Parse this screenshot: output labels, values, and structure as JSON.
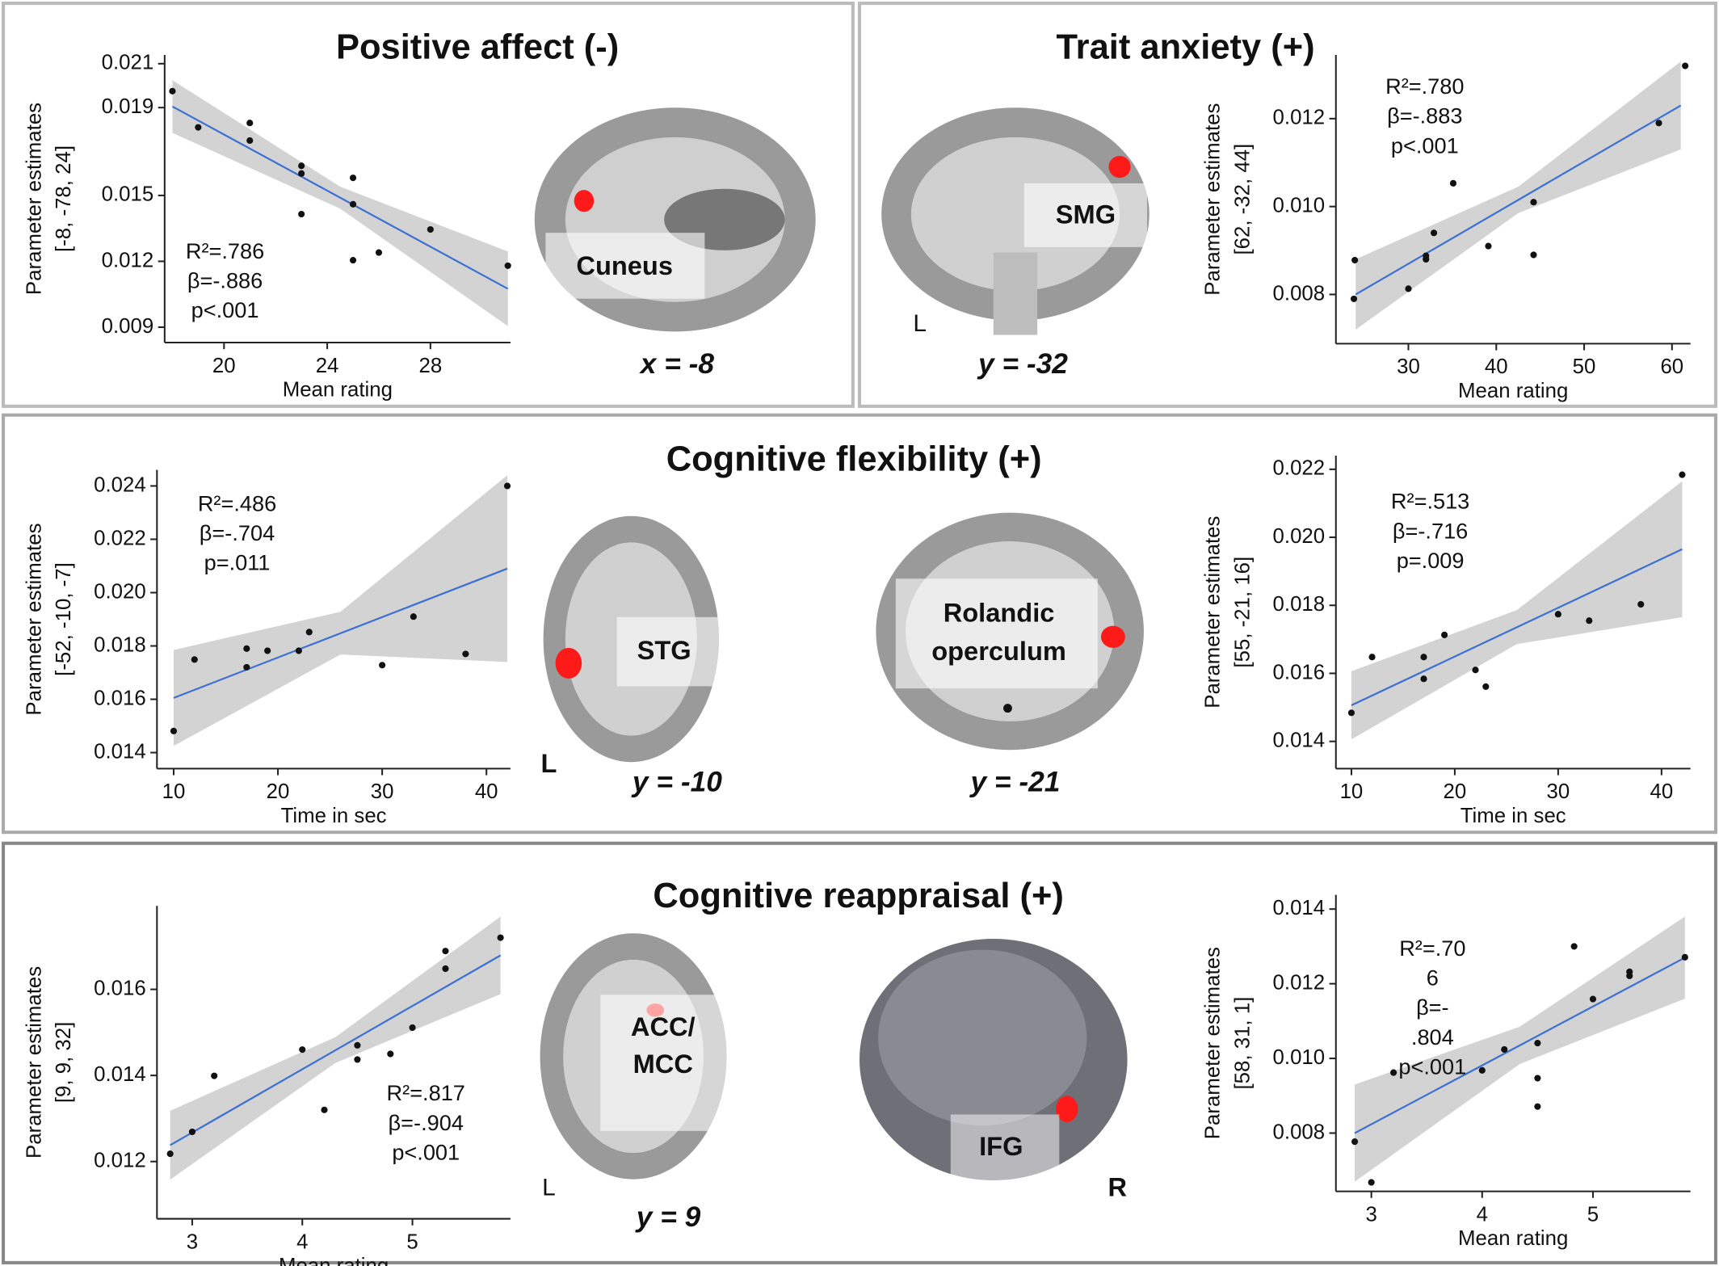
{
  "panels": [
    {
      "title": "Positive affect (-)",
      "brain_labels": [
        "Cuneus",
        "x = -8"
      ]
    },
    {
      "title": "Trait anxiety (+)",
      "brain_labels": [
        "SMG",
        "L",
        "y = -32"
      ]
    },
    {
      "title": "Cognitive  flexibility (+)",
      "brain_labels": [
        "STG",
        "L",
        "y = -10",
        "Rolandic",
        "operculum",
        "y = -21"
      ]
    },
    {
      "title": "Cognitive reappraisal (+)",
      "brain_labels": [
        "ACC/",
        "MCC",
        "L",
        "y = 9",
        "IFG",
        "R"
      ]
    }
  ],
  "chart_data": [
    {
      "type": "scatter",
      "xlabel": "Mean rating",
      "ylabel": [
        "Parameter estimates",
        "[-8, -78, 24]"
      ],
      "annotation": [
        "R²=.786",
        "β=-.886",
        "p<.001"
      ],
      "color": "#111111",
      "x": [
        18,
        19,
        21,
        21,
        23,
        23,
        23,
        25,
        25,
        25,
        26,
        28,
        31
      ],
      "values": [
        0.01975,
        0.0181,
        0.0183,
        0.0175,
        0.01635,
        0.016,
        0.01415,
        0.0158,
        0.0146,
        0.01205,
        0.0124,
        0.01345,
        0.0118
      ],
      "xlim": [
        17.7,
        31.1
      ],
      "ylim": [
        0.0083,
        0.0214
      ],
      "xticks": [
        20,
        24,
        28
      ],
      "yticks": [
        0.009,
        0.012,
        0.015,
        0.019,
        0.021
      ],
      "fit": {
        "x": [
          18,
          31
        ],
        "y": [
          0.01905,
          0.01075
        ],
        "color": "#3b6fd4"
      },
      "band": {
        "x": [
          18,
          24.5,
          31
        ],
        "lower": [
          0.01785,
          0.0144,
          0.00905
        ],
        "upper": [
          0.02025,
          0.0154,
          0.01245
        ],
        "color": "#d3d3d3"
      }
    },
    {
      "type": "scatter",
      "xlabel": "Mean rating",
      "ylabel": [
        "Parameter estimates",
        "[62, -32, 44]"
      ],
      "annotation": [
        "R²=.780",
        "β=-.883",
        "p<.001"
      ],
      "color": "#111111",
      "x": [
        23.9,
        23.8,
        30,
        32,
        32,
        32.9,
        35.1,
        39.1,
        44.25,
        44.25,
        58.5,
        61.5
      ],
      "values": [
        0.00878,
        0.0079,
        0.00813,
        0.0088,
        0.00888,
        0.0094,
        0.01053,
        0.0091,
        0.0101,
        0.0089,
        0.0119,
        0.0132
      ],
      "xlim": [
        21.75,
        62.1
      ],
      "ylim": [
        0.00688,
        0.01345
      ],
      "xticks": [
        30,
        40,
        50,
        60
      ],
      "yticks": [
        0.008,
        {
          "value": 0.01,
          "label": "0.010"
        },
        0.012
      ],
      "fit": {
        "x": [
          24,
          61
        ],
        "y": [
          0.008,
          0.0123
        ],
        "color": "#3b6fd4"
      },
      "band": {
        "x": [
          24,
          42.5,
          61
        ],
        "lower": [
          0.0072,
          0.00985,
          0.0113
        ],
        "upper": [
          0.0088,
          0.01045,
          0.0133
        ],
        "color": "#d3d3d3"
      }
    },
    {
      "type": "scatter",
      "xlabel": "Time in sec",
      "ylabel": [
        "Parameter estimates",
        "[-52, -10, -7]"
      ],
      "annotation": [
        "R²=.486",
        "β=-.704",
        "p=.011"
      ],
      "color": "#111111",
      "x": [
        10,
        12,
        17,
        17,
        19,
        22,
        23,
        30,
        33,
        38,
        42
      ],
      "values": [
        0.01481,
        0.01749,
        0.0179,
        0.0172,
        0.01782,
        0.01782,
        0.01852,
        0.01728,
        0.0191,
        0.0177,
        0.024
      ],
      "xlim": [
        8.4,
        42.3
      ],
      "ylim": [
        0.0134,
        0.0246
      ],
      "xticks": [
        10,
        20,
        30,
        40
      ],
      "yticks": [
        0.014,
        0.016,
        0.018,
        {
          "value": 0.02,
          "label": "0.020"
        },
        0.022,
        0.024
      ],
      "fit": {
        "x": [
          10,
          42
        ],
        "y": [
          0.01605,
          0.0209
        ],
        "color": "#3b6fd4"
      },
      "band": {
        "x": [
          10,
          26,
          42
        ],
        "lower": [
          0.01425,
          0.01768,
          0.0174
        ],
        "upper": [
          0.01785,
          0.01928,
          0.0244
        ],
        "color": "#d3d3d3"
      }
    },
    {
      "type": "scatter",
      "xlabel": "Time in sec",
      "ylabel": [
        "Parameter estimates",
        "[55, -21, 16]"
      ],
      "annotation": [
        "R²=.513",
        "β=-.716",
        "p=.009"
      ],
      "color": "#111111",
      "x": [
        10,
        12,
        17,
        17,
        19,
        22,
        23,
        30,
        33,
        38,
        42
      ],
      "values": [
        0.01484,
        0.01648,
        0.01648,
        0.01584,
        0.01713,
        0.0161,
        0.01561,
        0.01774,
        0.01755,
        0.01803,
        0.02184
      ],
      "xlim": [
        8.5,
        42.8
      ],
      "ylim": [
        0.0132,
        0.0224
      ],
      "xticks": [
        10,
        20,
        30,
        40
      ],
      "yticks": [
        0.014,
        0.016,
        0.018,
        {
          "value": 0.02,
          "label": "0.020"
        },
        0.022
      ],
      "fit": {
        "x": [
          10,
          42
        ],
        "y": [
          0.01506,
          0.01965
        ],
        "color": "#3b6fd4"
      },
      "band": {
        "x": [
          10,
          26,
          42
        ],
        "lower": [
          0.01406,
          0.01686,
          0.01765
        ],
        "upper": [
          0.01606,
          0.01786,
          0.02165
        ],
        "color": "#d3d3d3"
      }
    },
    {
      "type": "scatter",
      "xlabel": "Mean rating",
      "ylabel": [
        "Parameter estimates",
        "[9, 9, 32]"
      ],
      "annotation": [
        "R²=.817",
        "β=-.904",
        "p<.001"
      ],
      "color": "#111111",
      "x": [
        2.8,
        3,
        3.2,
        4,
        4.2,
        4.5,
        4.5,
        4.8,
        5,
        5.3,
        5.3,
        5.8
      ],
      "values": [
        0.01218,
        0.01269,
        0.01399,
        0.0146,
        0.0132,
        0.0147,
        0.01437,
        0.0145,
        0.01511,
        0.01689,
        0.01648,
        0.0172
      ],
      "xlim": [
        2.68,
        5.89
      ],
      "ylim": [
        0.01067,
        0.01794
      ],
      "xticks": [
        3,
        4,
        5
      ],
      "yticks": [
        0.012,
        0.014,
        0.016
      ],
      "fit": {
        "x": [
          2.8,
          5.8
        ],
        "y": [
          0.01238,
          0.01679
        ],
        "color": "#3b6fd4"
      },
      "band": {
        "x": [
          2.8,
          4.3,
          5.8
        ],
        "lower": [
          0.01158,
          0.01429,
          0.01589
        ],
        "upper": [
          0.01318,
          0.01489,
          0.01769
        ],
        "color": "#d3d3d3"
      }
    },
    {
      "type": "scatter",
      "xlabel": "Mean rating",
      "ylabel": [
        "Parameter estimates",
        "[58, 31, 1]"
      ],
      "annotation": [
        "R²=.70",
        "6",
        "β=-",
        ".804",
        "p<.001"
      ],
      "color": "#111111",
      "x": [
        2.85,
        3,
        3.2,
        4,
        4.2,
        4.5,
        4.5,
        4.5,
        4.83,
        5,
        5.33,
        5.33,
        5.83
      ],
      "values": [
        0.00777,
        0.00668,
        0.00962,
        0.00968,
        0.01024,
        0.01041,
        0.00947,
        0.00871,
        0.013,
        0.01159,
        0.01232,
        0.01221,
        0.01271
      ],
      "xlim": [
        2.68,
        5.88
      ],
      "ylim": [
        0.00644,
        0.01438
      ],
      "xticks": [
        3,
        4,
        5
      ],
      "yticks": [
        0.008,
        {
          "value": 0.01,
          "label": "0.010"
        },
        0.012,
        0.014
      ],
      "fit": {
        "x": [
          2.85,
          5.83
        ],
        "y": [
          0.008,
          0.0127
        ],
        "color": "#3b6fd4"
      },
      "band": {
        "x": [
          2.85,
          4.34,
          5.83
        ],
        "lower": [
          0.0067,
          0.00985,
          0.0116
        ],
        "upper": [
          0.0093,
          0.01085,
          0.0138
        ],
        "color": "#d3d3d3"
      }
    }
  ]
}
